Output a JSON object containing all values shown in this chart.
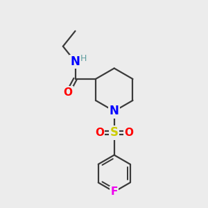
{
  "background_color": "#ececec",
  "atom_colors": {
    "C": "#3a3a3a",
    "N_amide": "#0000ff",
    "N_pip": "#0000ff",
    "O": "#ff0000",
    "S": "#cccc00",
    "F": "#ee00ee",
    "H": "#5f9ea0"
  },
  "bond_color": "#3a3a3a",
  "bond_width": 1.6,
  "font_size": 11
}
